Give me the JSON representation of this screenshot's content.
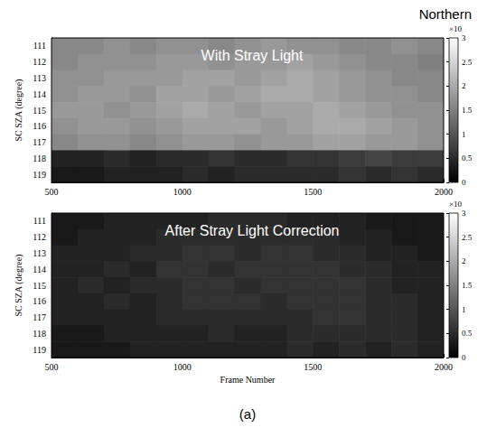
{
  "figure": {
    "title": "Northern",
    "label": "(a)"
  },
  "chart_data": [
    {
      "type": "heatmap",
      "title": "With Stray Light",
      "y_label": "SC SZA (degree)",
      "x": [
        550,
        650,
        750,
        850,
        950,
        1050,
        1150,
        1250,
        1350,
        1450,
        1550,
        1650,
        1750,
        1850,
        1950
      ],
      "y": [
        111,
        112,
        113,
        114,
        115,
        116,
        117,
        118,
        119
      ],
      "values": [
        [
          1.6,
          1.6,
          1.7,
          1.6,
          1.7,
          1.7,
          1.6,
          1.7,
          1.8,
          1.7,
          1.7,
          1.6,
          1.6,
          1.7,
          1.6
        ],
        [
          1.6,
          1.7,
          1.7,
          1.7,
          1.8,
          1.8,
          1.7,
          1.8,
          1.8,
          1.9,
          1.8,
          1.7,
          1.6,
          1.6,
          1.5
        ],
        [
          1.7,
          1.7,
          1.8,
          1.8,
          1.8,
          1.9,
          1.9,
          1.8,
          1.9,
          2.0,
          1.9,
          1.8,
          1.7,
          1.6,
          1.6
        ],
        [
          1.7,
          1.8,
          1.8,
          1.7,
          1.9,
          1.9,
          1.8,
          1.9,
          2.0,
          2.0,
          1.9,
          1.8,
          1.7,
          1.7,
          1.6
        ],
        [
          1.8,
          1.8,
          1.7,
          1.8,
          1.9,
          2.0,
          1.9,
          1.8,
          1.9,
          1.9,
          2.0,
          1.9,
          1.8,
          1.7,
          1.7
        ],
        [
          1.7,
          1.8,
          1.8,
          1.7,
          1.8,
          1.9,
          1.9,
          1.9,
          1.8,
          1.9,
          2.0,
          2.0,
          1.9,
          1.8,
          1.7
        ],
        [
          1.6,
          1.7,
          1.7,
          1.6,
          1.7,
          1.8,
          1.8,
          1.7,
          1.8,
          1.8,
          1.9,
          1.9,
          1.8,
          1.8,
          1.7
        ],
        [
          0.4,
          0.4,
          0.5,
          0.4,
          0.5,
          0.5,
          0.6,
          0.5,
          0.5,
          0.6,
          0.6,
          0.7,
          0.8,
          0.7,
          0.7
        ],
        [
          0.3,
          0.3,
          0.4,
          0.4,
          0.4,
          0.5,
          0.4,
          0.5,
          0.5,
          0.5,
          0.5,
          0.6,
          0.5,
          0.6,
          0.5
        ]
      ],
      "xlim": [
        500,
        2000
      ],
      "xticks": [
        500,
        1000,
        1500,
        2000
      ],
      "ylim": [
        119.5,
        110.5
      ],
      "yticks": [
        111,
        112,
        113,
        114,
        115,
        116,
        117,
        118,
        119
      ],
      "colorbar": {
        "label": "×10",
        "range": [
          0,
          3
        ],
        "ticks": [
          0,
          0.5,
          1,
          1.5,
          2,
          2.5,
          3
        ]
      }
    },
    {
      "type": "heatmap",
      "title": "After Stray Light Correction",
      "y_label": "SC SZA (degree)",
      "x_label": "Frame Number",
      "x": [
        550,
        650,
        750,
        850,
        950,
        1050,
        1150,
        1250,
        1350,
        1450,
        1550,
        1650,
        1750,
        1850,
        1950
      ],
      "y": [
        111,
        112,
        113,
        114,
        115,
        116,
        117,
        118,
        119
      ],
      "values": [
        [
          0.3,
          0.3,
          0.4,
          0.4,
          0.4,
          0.4,
          0.5,
          0.5,
          0.5,
          0.4,
          0.4,
          0.4,
          0.3,
          0.3,
          0.3
        ],
        [
          0.3,
          0.4,
          0.4,
          0.4,
          0.5,
          0.5,
          0.5,
          0.5,
          0.5,
          0.5,
          0.5,
          0.4,
          0.4,
          0.3,
          0.3
        ],
        [
          0.4,
          0.4,
          0.4,
          0.5,
          0.5,
          0.6,
          0.6,
          0.5,
          0.6,
          0.6,
          0.5,
          0.5,
          0.4,
          0.4,
          0.3
        ],
        [
          0.4,
          0.4,
          0.5,
          0.4,
          0.6,
          0.6,
          0.5,
          0.6,
          0.6,
          0.6,
          0.6,
          0.5,
          0.5,
          0.4,
          0.4
        ],
        [
          0.4,
          0.5,
          0.4,
          0.5,
          0.5,
          0.6,
          0.6,
          0.5,
          0.6,
          0.6,
          0.6,
          0.6,
          0.5,
          0.4,
          0.4
        ],
        [
          0.4,
          0.4,
          0.5,
          0.4,
          0.5,
          0.6,
          0.6,
          0.6,
          0.5,
          0.6,
          0.6,
          0.6,
          0.5,
          0.5,
          0.4
        ],
        [
          0.4,
          0.4,
          0.4,
          0.4,
          0.5,
          0.5,
          0.5,
          0.5,
          0.5,
          0.5,
          0.6,
          0.6,
          0.5,
          0.5,
          0.4
        ],
        [
          0.3,
          0.3,
          0.4,
          0.4,
          0.4,
          0.4,
          0.5,
          0.4,
          0.4,
          0.5,
          0.5,
          0.5,
          0.5,
          0.5,
          0.4
        ],
        [
          0.3,
          0.3,
          0.3,
          0.4,
          0.4,
          0.4,
          0.4,
          0.4,
          0.4,
          0.5,
          0.4,
          0.5,
          0.4,
          0.5,
          0.4
        ]
      ],
      "xlim": [
        500,
        2000
      ],
      "xticks": [
        500,
        1000,
        1500,
        2000
      ],
      "ylim": [
        119.5,
        110.5
      ],
      "yticks": [
        111,
        112,
        113,
        114,
        115,
        116,
        117,
        118,
        119
      ],
      "colorbar": {
        "label": "×10",
        "range": [
          0,
          3
        ],
        "ticks": [
          0,
          0.5,
          1,
          1.5,
          2,
          2.5,
          3
        ]
      }
    }
  ]
}
